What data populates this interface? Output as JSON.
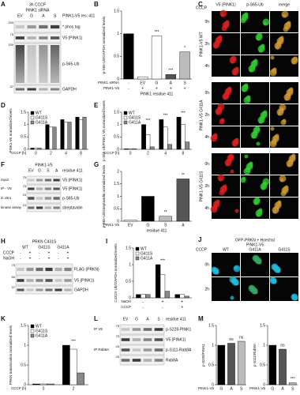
{
  "A": {
    "letter": "A",
    "headers": [
      "3h CCCP",
      "PINK1 siRNA"
    ],
    "lanes": [
      "EV",
      "G",
      "A",
      "S"
    ],
    "lanes_label": "PINK1-V5 res. 411",
    "lane_rows": [],
    "strips": [
      {
        "label": "* phos tag",
        "mw": "150",
        "group": null
      },
      {
        "label": "V5 (PINK1)",
        "mw": "75",
        "group": null
      },
      {
        "label": "p-S65-Ub",
        "mw": "150",
        "group": null
      },
      {
        "label": "GAPDH",
        "mw": "37",
        "group": null
      }
    ]
  },
  "F": {
    "letter": "F",
    "headers": [
      "PINK1-V5"
    ],
    "lanes": [
      "EV",
      "G",
      "S",
      "A"
    ],
    "lanes_label": "residue 411",
    "lane_rows": [],
    "strips": [
      {
        "label": "V5 (PINK1)",
        "mw": "75",
        "group": "input"
      },
      {
        "label": "V5 (PINK1)",
        "mw": "75",
        "group": "IP - V5"
      },
      {
        "label": "p-S65-Ub",
        "mw": "15",
        "group": "in vitro"
      },
      {
        "label": "streptavidin",
        "mw": "15",
        "group": "kinase assay"
      }
    ]
  },
  "H": {
    "letter": "H",
    "headers": [
      "PRKN C431S"
    ],
    "lanes": [
      "WT",
      "G411S",
      "G411A"
    ],
    "lanes_label": null,
    "lane_rows": [
      {
        "label": "CCCP",
        "values": [
          "-",
          "+",
          "-",
          "+",
          "-",
          "+"
        ]
      },
      {
        "label": "NaOH",
        "values": [
          "-",
          "+",
          "-",
          "+",
          "-",
          "+"
        ]
      }
    ],
    "strips": [
      {
        "label": "FLAG (PRKN)",
        "mw": "75",
        "group": null
      },
      {
        "label": "V5 (PINK1)",
        "mw": "50",
        "group": null
      },
      {
        "label": "GAPDH",
        "mw": "37",
        "group": null
      }
    ]
  },
  "L": {
    "letter": "L",
    "headers": [],
    "lanes": [
      "EV",
      "G",
      "A",
      "S"
    ],
    "lanes_label": "residue 411",
    "lane_rows": [],
    "strips": [
      {
        "label": "p-S228-PINK1",
        "mw": "75",
        "group": "IP V5"
      },
      {
        "label": "V5 (PINK1)",
        "mw": "75",
        "group": null
      },
      {
        "label": "p-S111-Rab8A",
        "mw": "25",
        "group": "IP Rab8A"
      },
      {
        "label": "Rab8A",
        "mw": "25",
        "group": null
      }
    ]
  },
  "C": {
    "letter": "C",
    "columns": [
      "V5 (PINK1)",
      "p-S65-Ub",
      "merge"
    ],
    "side": "CCCP",
    "groups": [
      {
        "label": "PINK1-V5 WT",
        "rows": [
          "0h",
          "2h",
          "4h"
        ]
      },
      {
        "label": "PINK1-V5 G411A",
        "rows": [
          "0h",
          "2h",
          "4h"
        ]
      },
      {
        "label": "PINK1-V5 G411S",
        "rows": [
          "0h",
          "2h",
          "4h"
        ]
      }
    ]
  },
  "J": {
    "letter": "J",
    "header": "GFP-PRKN + Hoechst",
    "subheader": "PINK1-V5",
    "columns": [
      "WT",
      "G411A",
      "G411S"
    ],
    "side": "CCCP",
    "rows": [
      "0h",
      "2h"
    ]
  },
  "chart_data": [
    {
      "type": "bar",
      "panel": "B",
      "ylabel": "p-S65-Ub/GAPDH normalized levels",
      "xlabel": "PINK1-V5",
      "categories": [
        "-",
        "EV",
        "G",
        "A",
        "S"
      ],
      "series": [
        {
          "colors": [
            "#000000",
            "#ffffff",
            "#ffffff",
            "#555555",
            "#bbbbbb"
          ],
          "values": [
            1.0,
            0.05,
            0.95,
            0.1,
            0.6
          ]
        }
      ],
      "ylim": [
        0,
        1.5
      ],
      "yticks": [
        0,
        0.5,
        1,
        1.5
      ],
      "significance": [
        null,
        null,
        "***",
        "***",
        "*"
      ],
      "rows": [
        {
          "label": "PINK1 siRNA",
          "values": [
            "-",
            "+",
            "+",
            "+",
            "+"
          ]
        }
      ],
      "footnote": "PINK1 residue 411"
    },
    {
      "type": "bar",
      "panel": "D",
      "ylabel": "PINK1-V5 normalized levels",
      "xlabel": "CCCP [h]",
      "categories": [
        "0",
        "2",
        "4",
        "8"
      ],
      "series": [
        {
          "name": "WT",
          "color": "#000000",
          "values": [
            0.05,
            1.0,
            1.2,
            1.3
          ]
        },
        {
          "name": "G411S",
          "color": "#ffffff",
          "values": [
            0.05,
            0.9,
            1.1,
            1.2
          ]
        },
        {
          "name": "G411A",
          "color": "#888888",
          "values": [
            0.05,
            0.9,
            1.1,
            1.3
          ]
        }
      ],
      "ylim": [
        0,
        1.5
      ],
      "yticks": [
        0,
        0.5,
        1,
        1.5
      ],
      "significance": [
        null,
        null,
        null,
        null
      ],
      "rows": [],
      "footnote": null
    },
    {
      "type": "bar",
      "panel": "E",
      "ylabel": "p-S65-Ub/PINK1-V5 normalized levels",
      "xlabel": "CCCP [h]",
      "categories": [
        "0",
        "2",
        "4",
        "8"
      ],
      "series": [
        {
          "name": "WT",
          "color": "#000000",
          "values": [
            0.02,
            1.0,
            1.2,
            1.3
          ]
        },
        {
          "name": "G411S",
          "color": "#ffffff",
          "values": [
            0.02,
            0.6,
            0.9,
            1.0
          ]
        },
        {
          "name": "G411A",
          "color": "#888888",
          "values": [
            0.02,
            0.1,
            0.2,
            0.3
          ]
        }
      ],
      "ylim": [
        0,
        1.5
      ],
      "yticks": [
        0,
        0.5,
        1,
        1.5
      ],
      "significance": [
        null,
        "***",
        "***",
        "***"
      ],
      "rows": [],
      "footnote": null
    },
    {
      "type": "bar",
      "panel": "G",
      "ylabel": "p-S65-Ub/streptavidin normalized levels",
      "xlabel": "PINK1-V5",
      "categories": [
        "EV",
        "G",
        "S",
        "A"
      ],
      "series": [
        {
          "colors": [
            "#ffffff",
            "#000000",
            "#bbbbbb",
            "#555555"
          ],
          "values": [
            0.05,
            1.0,
            0.2,
            1.7
          ]
        }
      ],
      "ylim": [
        0,
        2
      ],
      "yticks": [
        0,
        0.5,
        1,
        1.5,
        2
      ],
      "significance": [
        null,
        null,
        "**",
        "**"
      ],
      "rows": [],
      "footnote": "residue 411"
    },
    {
      "type": "bar",
      "panel": "I",
      "ylabel": "C431S-Ub/GAPDH normalized levels",
      "xlabel": "CCCP",
      "categories": [
        "-",
        "+",
        "+"
      ],
      "series": [
        {
          "name": "WT",
          "color": "#000000",
          "values": [
            0.1,
            1.0,
            0.1
          ]
        },
        {
          "name": "G411S",
          "color": "#ffffff",
          "values": [
            0.1,
            0.7,
            0.1
          ]
        },
        {
          "name": "G411A",
          "color": "#888888",
          "values": [
            0.1,
            0.2,
            0.05
          ]
        }
      ],
      "ylim": [
        0,
        1.5
      ],
      "yticks": [
        0,
        0.5,
        1,
        1.5
      ],
      "significance": [
        null,
        "***",
        null
      ],
      "rows": [
        {
          "label": "NaOH",
          "values": [
            "-",
            "-",
            "+"
          ]
        }
      ],
      "footnote": null
    },
    {
      "type": "bar",
      "panel": "K",
      "ylabel": "PRKN translocation normalized levels",
      "xlabel": "CCCP [h]",
      "categories": [
        "0",
        "2"
      ],
      "series": [
        {
          "name": "WT",
          "color": "#000000",
          "values": [
            0.02,
            1.0
          ]
        },
        {
          "name": "G411S",
          "color": "#ffffff",
          "values": [
            0.02,
            0.9
          ]
        },
        {
          "name": "G411A",
          "color": "#888888",
          "values": [
            0.02,
            0.3
          ]
        }
      ],
      "ylim": [
        0,
        1.5
      ],
      "yticks": [
        0,
        0.5,
        1,
        1.5
      ],
      "significance": [
        null,
        "***"
      ],
      "rows": [],
      "footnote": null
    },
    {
      "type": "bar",
      "panel": "M",
      "ylabel": "p-S228/PINK1",
      "xlabel": "PINK1-V5",
      "categories": [
        "G",
        "A",
        "S"
      ],
      "series": [
        {
          "colors": [
            "#000000",
            "#555555",
            "#bbbbbb"
          ],
          "values": [
            1.0,
            1.05,
            1.1
          ]
        }
      ],
      "ylim": [
        0,
        1.5
      ],
      "yticks": [
        0,
        0.5,
        1,
        1.5
      ],
      "significance": [
        null,
        "ns",
        "ns"
      ],
      "rows": [],
      "footnote": null
    },
    {
      "type": "bar",
      "panel": null,
      "ylabel": "p-S111/Rab8A",
      "xlabel": "PINK1-V5",
      "categories": [
        "G",
        "A",
        "S"
      ],
      "series": [
        {
          "colors": [
            "#000000",
            "#555555",
            "#bbbbbb"
          ],
          "values": [
            1.0,
            0.9,
            0.05
          ]
        }
      ],
      "ylim": [
        0,
        1.5
      ],
      "yticks": [
        0,
        0.5,
        1,
        1.5
      ],
      "significance": [
        null,
        "ns",
        "***"
      ],
      "rows": [],
      "footnote": null
    }
  ]
}
